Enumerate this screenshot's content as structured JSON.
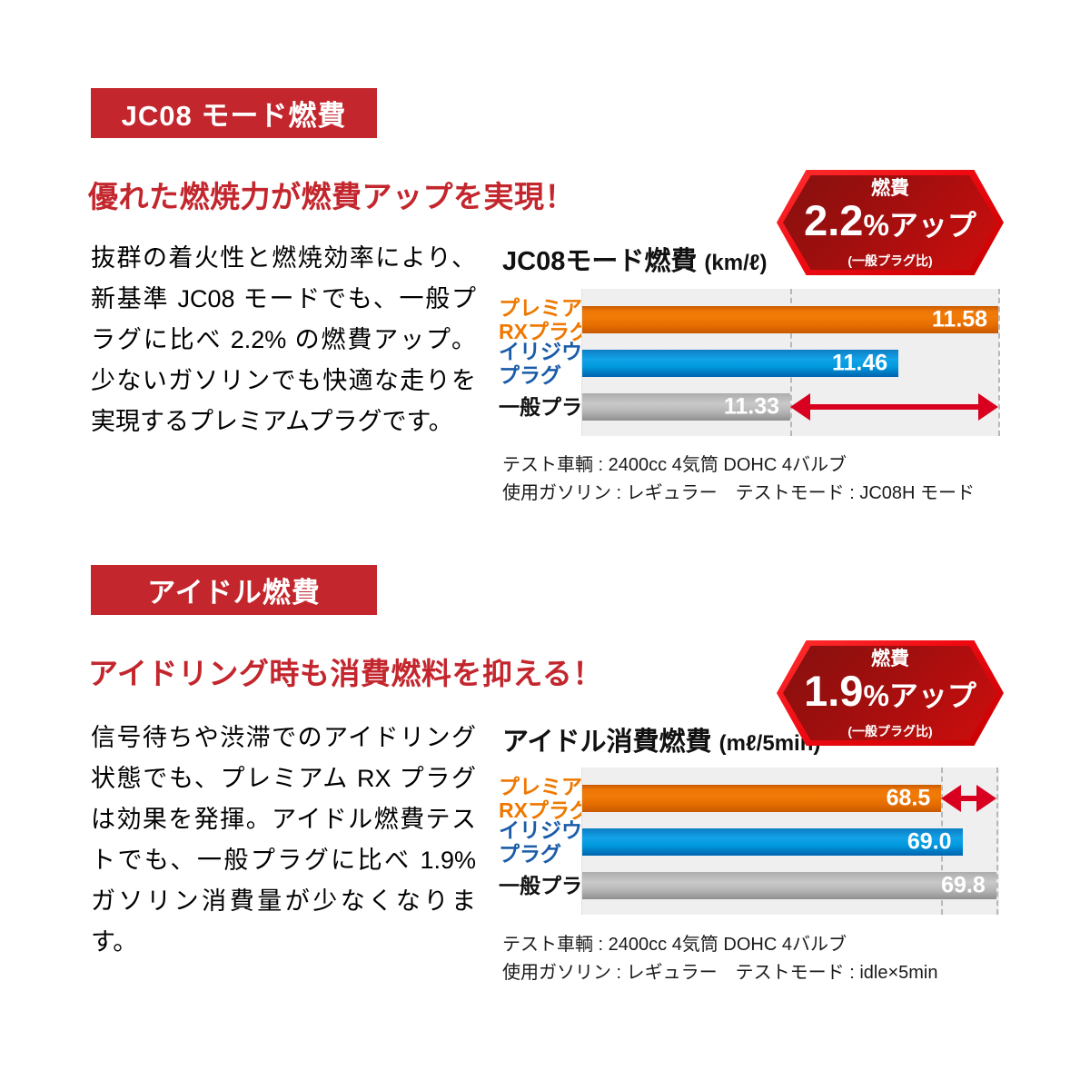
{
  "colors": {
    "accent_red": "#c3262d",
    "badge_border_red": "#ef0a12",
    "badge_fill_dark": "#86100f",
    "badge_fill_bright": "#cf0d0d",
    "arrow_red": "#d8001e",
    "bar_orange": "#e87205",
    "bar_blue": "#009ade",
    "bar_gray": "#b5b5b5",
    "plot_background": "#efefef",
    "label_orange": "#ee7800",
    "label_blue": "#1b5ca8",
    "label_black": "#111111"
  },
  "sections": [
    {
      "banner": "JC08 モード燃費",
      "headline": "優れた燃焼力が燃費アップを実現！",
      "body": "抜群の着火性と燃焼効率により、新基準 JC08 モードでも、一般プラグに比べ 2.2% の燃費アップ。少ないガソリンでも快適な走りを実現するプレミアムプラグです。",
      "badge": {
        "label": "燃費",
        "value": "2.2",
        "suffix": "%アップ",
        "note": "(一般プラグ比)"
      },
      "chart_title": "JC08モード燃費 ",
      "chart_unit": "(km/ℓ)",
      "notes": [
        "テスト車輌 : 2400cc 4気筒 DOHC 4バルブ",
        "使用ガソリン : レギュラー　テストモード : JC08H モード"
      ]
    },
    {
      "banner": "アイドル燃費",
      "headline": "アイドリング時も消費燃料を抑える！",
      "body": "信号待ちや渋滞でのアイドリング状態でも、プレミアム RX プラグは効果を発揮。アイドル燃費テストでも、一般プラグに比べ 1.9% ガソリン消費量が少なくなります。",
      "badge": {
        "label": "燃費",
        "value": "1.9",
        "suffix": "%アップ",
        "note": "(一般プラグ比)"
      },
      "chart_title": "アイドル消費燃費 ",
      "chart_unit": "(mℓ/5min)",
      "notes": [
        "テスト車輌 : 2400cc 4気筒 DOHC 4バルブ",
        "使用ガソリン : レギュラー　テストモード : idle×5min"
      ]
    }
  ],
  "chart_data": [
    {
      "type": "bar",
      "orientation": "horizontal",
      "title": "JC08モード燃費 (km/ℓ)",
      "categories": [
        "プレミアムRXプラグ",
        "イリジウムプラグ",
        "一般プラグ"
      ],
      "category_lines": [
        [
          "プレミアム",
          "RXプラグ"
        ],
        [
          "イリジウム",
          "プラグ"
        ],
        [
          "一般プラグ"
        ]
      ],
      "category_colors": [
        "#ee7800",
        "#1b5ca8",
        "#111111"
      ],
      "values": [
        11.58,
        11.46,
        11.33
      ],
      "value_labels": [
        "11.58",
        "11.46",
        "11.33"
      ],
      "bar_styles": [
        "orange",
        "blue",
        "gray"
      ],
      "unit": "km/ℓ",
      "xlim": [
        11.08,
        11.581
      ],
      "grid": false,
      "legend": false,
      "guides": [
        11.33,
        11.58
      ],
      "arrow": {
        "from": 11.33,
        "to": 11.58,
        "row": 2
      }
    },
    {
      "type": "bar",
      "orientation": "horizontal",
      "title": "アイドル消費燃費 (mℓ/5min)",
      "categories": [
        "プレミアムRXプラグ",
        "イリジウムプラグ",
        "一般プラグ"
      ],
      "category_lines": [
        [
          "プレミアム",
          "RXプラグ"
        ],
        [
          "イリジウム",
          "プラグ"
        ],
        [
          "一般プラグ"
        ]
      ],
      "category_colors": [
        "#ee7800",
        "#1b5ca8",
        "#111111"
      ],
      "values": [
        68.5,
        69.0,
        69.8
      ],
      "value_labels": [
        "68.5",
        "69.0",
        "69.8"
      ],
      "bar_styles": [
        "orange",
        "blue",
        "gray"
      ],
      "unit": "mℓ/5min",
      "xlim": [
        60.0,
        69.87
      ],
      "grid": false,
      "legend": false,
      "guides": [
        68.5,
        69.8
      ],
      "arrow": {
        "from": 68.5,
        "to": 69.8,
        "row": 0
      }
    }
  ]
}
